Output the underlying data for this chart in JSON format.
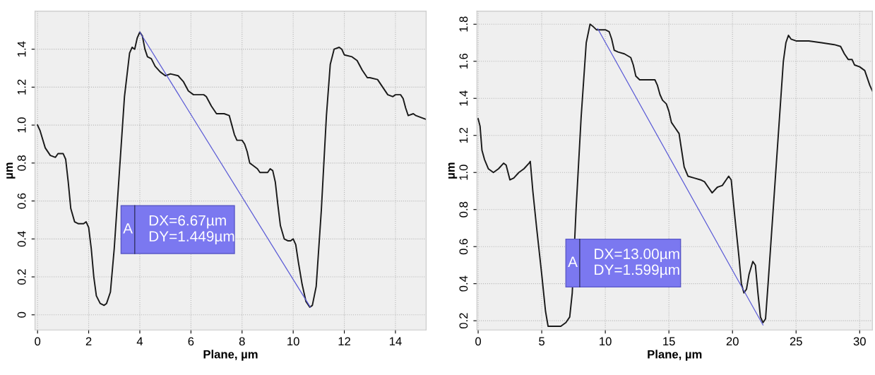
{
  "chart_data": [
    {
      "type": "line",
      "xlabel": "Plane, µm",
      "ylabel": "µm",
      "xlim": [
        -0.1,
        15.2
      ],
      "ylim": [
        -0.08,
        1.6
      ],
      "xticks": [
        0,
        2,
        4,
        6,
        8,
        10,
        12,
        14
      ],
      "yticks": [
        0,
        0.2,
        0.4,
        0.6,
        0.8,
        {
          "value": 1,
          "label": "1.0"
        },
        1.2,
        1.4
      ],
      "grid": true,
      "legend": false,
      "marker": "none",
      "line_style": "solid",
      "series": [
        {
          "color": "#1a1a1a",
          "x": [
            0,
            0.1,
            0.3,
            0.5,
            0.7,
            0.8,
            1.0,
            1.1,
            1.2,
            1.3,
            1.45,
            1.6,
            1.8,
            1.9,
            2.0,
            2.1,
            2.2,
            2.3,
            2.45,
            2.6,
            2.7,
            2.85,
            3.0,
            3.2,
            3.4,
            3.6,
            3.7,
            3.8,
            3.9,
            4.0,
            4.1,
            4.2,
            4.3,
            4.45,
            4.6,
            4.8,
            5.0,
            5.2,
            5.5,
            5.7,
            5.9,
            6.1,
            6.5,
            6.6,
            6.8,
            7.0,
            7.3,
            7.5,
            7.6,
            7.7,
            7.8,
            8.0,
            8.1,
            8.2,
            8.3,
            8.4,
            8.6,
            8.7,
            9.0,
            9.1,
            9.2,
            9.3,
            9.4,
            9.5,
            9.65,
            9.8,
            9.9,
            10.0,
            10.1,
            10.2,
            10.35,
            10.5,
            10.65,
            10.75,
            10.9,
            11.1,
            11.3,
            11.45,
            11.6,
            11.8,
            11.9,
            12.0,
            12.3,
            12.5,
            12.7,
            12.9,
            13.0,
            13.3,
            13.5,
            13.7,
            13.9,
            14.0,
            14.2,
            14.3,
            14.4,
            14.5,
            14.7,
            14.8,
            15.0,
            15.2
          ],
          "values": [
            1.0,
            0.97,
            0.88,
            0.84,
            0.83,
            0.85,
            0.85,
            0.82,
            0.7,
            0.56,
            0.49,
            0.48,
            0.48,
            0.49,
            0.46,
            0.35,
            0.2,
            0.1,
            0.06,
            0.05,
            0.06,
            0.12,
            0.35,
            0.75,
            1.15,
            1.38,
            1.41,
            1.4,
            1.46,
            1.49,
            1.47,
            1.4,
            1.36,
            1.35,
            1.31,
            1.28,
            1.26,
            1.27,
            1.26,
            1.23,
            1.18,
            1.16,
            1.16,
            1.15,
            1.1,
            1.06,
            1.06,
            1.05,
            1.0,
            0.95,
            0.92,
            0.92,
            0.9,
            0.86,
            0.8,
            0.79,
            0.77,
            0.75,
            0.75,
            0.77,
            0.76,
            0.7,
            0.58,
            0.47,
            0.4,
            0.39,
            0.39,
            0.4,
            0.37,
            0.28,
            0.16,
            0.07,
            0.04,
            0.05,
            0.15,
            0.55,
            1.05,
            1.32,
            1.4,
            1.41,
            1.4,
            1.37,
            1.36,
            1.34,
            1.29,
            1.25,
            1.25,
            1.24,
            1.2,
            1.16,
            1.15,
            1.16,
            1.16,
            1.14,
            1.09,
            1.05,
            1.06,
            1.05,
            1.04,
            1.03
          ]
        },
        {
          "color": "#5b5bd6",
          "x": [
            4.0,
            10.67
          ],
          "values": [
            1.49,
            0.041
          ]
        }
      ],
      "annotations": [
        "A",
        "DX=6.67µm",
        "DY=1.449µm"
      ]
    },
    {
      "type": "line",
      "xlabel": "Plane, µm",
      "ylabel": "µm",
      "xlim": [
        -0.1,
        31.0
      ],
      "ylim": [
        0.15,
        1.87
      ],
      "xticks": [
        0,
        5,
        10,
        15,
        20,
        25,
        30
      ],
      "yticks": [
        0.2,
        0.4,
        0.6,
        0.8,
        {
          "value": 1,
          "label": "1.0"
        },
        1.2,
        1.4,
        1.6,
        1.8
      ],
      "grid": true,
      "legend": false,
      "marker": "none",
      "line_style": "solid",
      "series": [
        {
          "color": "#1a1a1a",
          "x": [
            0,
            0.15,
            0.3,
            0.5,
            0.8,
            1.2,
            1.6,
            2.0,
            2.2,
            2.5,
            2.8,
            3.2,
            3.6,
            4.0,
            4.1,
            4.3,
            4.6,
            5.0,
            5.3,
            5.5,
            6.0,
            6.5,
            6.9,
            7.2,
            7.4,
            7.7,
            8.1,
            8.5,
            8.8,
            9.0,
            9.3,
            10.0,
            10.3,
            10.5,
            10.7,
            11.0,
            11.5,
            12.0,
            12.2,
            12.4,
            12.7,
            13.0,
            13.9,
            14.1,
            14.3,
            14.5,
            14.8,
            15.0,
            15.2,
            15.5,
            15.8,
            16.0,
            16.2,
            16.5,
            17.0,
            17.5,
            17.8,
            18.1,
            18.4,
            18.8,
            19.2,
            19.5,
            19.7,
            19.9,
            20.2,
            20.5,
            20.7,
            20.9,
            21.1,
            21.3,
            21.6,
            21.8,
            22.0,
            22.2,
            22.4,
            22.6,
            22.8,
            23.2,
            23.7,
            24.0,
            24.2,
            24.4,
            24.6,
            25.0,
            26.0,
            27.0,
            28.0,
            28.5,
            28.8,
            29.1,
            29.4,
            29.6,
            30.0,
            30.4,
            30.6,
            30.8,
            31.0
          ],
          "values": [
            1.29,
            1.25,
            1.12,
            1.07,
            1.02,
            1.0,
            1.02,
            1.05,
            1.04,
            0.96,
            0.97,
            1.0,
            1.02,
            1.05,
            1.06,
            0.9,
            0.7,
            0.45,
            0.25,
            0.17,
            0.17,
            0.17,
            0.19,
            0.22,
            0.35,
            0.8,
            1.3,
            1.7,
            1.8,
            1.79,
            1.77,
            1.77,
            1.76,
            1.72,
            1.66,
            1.65,
            1.64,
            1.62,
            1.58,
            1.52,
            1.5,
            1.5,
            1.5,
            1.47,
            1.42,
            1.39,
            1.37,
            1.33,
            1.27,
            1.24,
            1.21,
            1.12,
            1.03,
            0.98,
            0.97,
            0.96,
            0.95,
            0.92,
            0.89,
            0.92,
            0.93,
            0.96,
            0.98,
            0.96,
            0.75,
            0.55,
            0.4,
            0.35,
            0.37,
            0.45,
            0.52,
            0.5,
            0.35,
            0.22,
            0.19,
            0.21,
            0.4,
            0.8,
            1.3,
            1.6,
            1.7,
            1.74,
            1.72,
            1.71,
            1.71,
            1.7,
            1.69,
            1.68,
            1.64,
            1.61,
            1.61,
            1.58,
            1.57,
            1.55,
            1.51,
            1.47,
            1.44
          ]
        },
        {
          "color": "#5b5bd6",
          "x": [
            9.4,
            22.4
          ],
          "values": [
            1.776,
            0.177
          ]
        }
      ],
      "annotations": [
        "A",
        "DX=13.00µm",
        "DY=1.599µm"
      ]
    }
  ]
}
